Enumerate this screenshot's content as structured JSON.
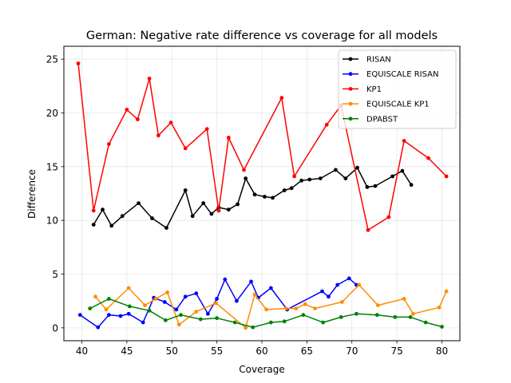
{
  "chart_data": {
    "type": "line",
    "title": "German: Negative rate difference vs coverage for all models",
    "xlabel": "Coverage",
    "ylabel": "Difference",
    "xlim": [
      38,
      82
    ],
    "ylim": [
      -1.2,
      26.2
    ],
    "xticks": [
      40,
      45,
      50,
      55,
      60,
      65,
      70,
      75,
      80
    ],
    "yticks": [
      0,
      5,
      10,
      15,
      20,
      25
    ],
    "grid": true,
    "legend_position": "top-right",
    "series": [
      {
        "name": "RISAN",
        "color": "#000000",
        "points": [
          [
            41.3,
            9.6
          ],
          [
            42.3,
            11.0
          ],
          [
            43.3,
            9.5
          ],
          [
            44.5,
            10.4
          ],
          [
            46.3,
            11.6
          ],
          [
            47.8,
            10.2
          ],
          [
            49.4,
            9.3
          ],
          [
            51.5,
            12.8
          ],
          [
            52.3,
            10.4
          ],
          [
            53.5,
            11.6
          ],
          [
            54.4,
            10.6
          ],
          [
            55.2,
            11.2
          ],
          [
            56.3,
            11.0
          ],
          [
            57.3,
            11.5
          ],
          [
            58.2,
            13.9
          ],
          [
            59.2,
            12.4
          ],
          [
            60.3,
            12.2
          ],
          [
            61.2,
            12.1
          ],
          [
            62.5,
            12.8
          ],
          [
            63.3,
            13.0
          ],
          [
            64.4,
            13.7
          ],
          [
            65.3,
            13.8
          ],
          [
            66.5,
            13.9
          ],
          [
            68.2,
            14.7
          ],
          [
            69.3,
            13.9
          ],
          [
            70.6,
            14.9
          ],
          [
            71.7,
            13.1
          ],
          [
            72.6,
            13.2
          ],
          [
            74.5,
            14.1
          ],
          [
            75.6,
            14.6
          ],
          [
            76.6,
            13.3
          ]
        ]
      },
      {
        "name": "EQUISCALE RISAN",
        "color": "#0000ff",
        "points": [
          [
            39.8,
            1.2
          ],
          [
            41.8,
            0.05
          ],
          [
            43.0,
            1.2
          ],
          [
            44.3,
            1.1
          ],
          [
            45.2,
            1.3
          ],
          [
            46.8,
            0.5
          ],
          [
            48.0,
            2.8
          ],
          [
            49.2,
            2.4
          ],
          [
            50.5,
            1.7
          ],
          [
            51.5,
            2.9
          ],
          [
            52.7,
            3.2
          ],
          [
            54.0,
            1.3
          ],
          [
            55.0,
            2.7
          ],
          [
            55.9,
            4.5
          ],
          [
            57.2,
            2.5
          ],
          [
            58.8,
            4.3
          ],
          [
            59.6,
            2.8
          ],
          [
            61.0,
            3.7
          ],
          [
            62.8,
            1.7
          ],
          [
            66.7,
            3.4
          ],
          [
            67.4,
            2.9
          ],
          [
            68.4,
            4.0
          ],
          [
            69.7,
            4.6
          ],
          [
            70.5,
            4.0
          ]
        ]
      },
      {
        "name": "KP1",
        "color": "#ff0000",
        "points": [
          [
            39.6,
            24.6
          ],
          [
            41.3,
            10.9
          ],
          [
            43.0,
            17.1
          ],
          [
            45.0,
            20.3
          ],
          [
            46.2,
            19.4
          ],
          [
            47.5,
            23.2
          ],
          [
            48.5,
            17.9
          ],
          [
            49.9,
            19.1
          ],
          [
            51.5,
            16.7
          ],
          [
            53.9,
            18.5
          ],
          [
            55.2,
            10.9
          ],
          [
            56.3,
            17.7
          ],
          [
            58.0,
            14.7
          ],
          [
            62.2,
            21.4
          ],
          [
            63.6,
            14.1
          ],
          [
            67.2,
            18.9
          ],
          [
            68.8,
            20.7
          ],
          [
            71.8,
            9.1
          ],
          [
            74.1,
            10.3
          ],
          [
            75.8,
            17.4
          ],
          [
            78.5,
            15.8
          ],
          [
            80.5,
            14.1
          ]
        ]
      },
      {
        "name": "EQUISCALE KP1",
        "color": "#ff8c00",
        "points": [
          [
            41.5,
            2.9
          ],
          [
            42.7,
            1.7
          ],
          [
            45.2,
            3.7
          ],
          [
            47.0,
            2.1
          ],
          [
            48.2,
            2.7
          ],
          [
            49.5,
            3.3
          ],
          [
            50.8,
            0.3
          ],
          [
            52.7,
            1.5
          ],
          [
            54.9,
            2.3
          ],
          [
            58.2,
            0.0
          ],
          [
            59.2,
            3.1
          ],
          [
            60.5,
            1.7
          ],
          [
            62.7,
            1.8
          ],
          [
            63.8,
            1.8
          ],
          [
            64.8,
            2.2
          ],
          [
            65.9,
            1.8
          ],
          [
            68.9,
            2.4
          ],
          [
            70.8,
            4.0
          ],
          [
            72.9,
            2.1
          ],
          [
            75.8,
            2.7
          ],
          [
            76.8,
            1.3
          ],
          [
            79.7,
            1.9
          ],
          [
            80.5,
            3.4
          ]
        ]
      },
      {
        "name": "DPABST",
        "color": "#008000",
        "points": [
          [
            40.9,
            1.8
          ],
          [
            43.0,
            2.7
          ],
          [
            45.3,
            2.0
          ],
          [
            47.5,
            1.6
          ],
          [
            49.3,
            0.7
          ],
          [
            51.0,
            1.2
          ],
          [
            53.2,
            0.8
          ],
          [
            55.0,
            0.9
          ],
          [
            57.0,
            0.5
          ],
          [
            59.0,
            0.05
          ],
          [
            61.0,
            0.5
          ],
          [
            62.5,
            0.6
          ],
          [
            64.6,
            1.2
          ],
          [
            66.8,
            0.5
          ],
          [
            68.8,
            1.0
          ],
          [
            70.5,
            1.3
          ],
          [
            72.8,
            1.2
          ],
          [
            74.8,
            1.0
          ],
          [
            76.5,
            1.0
          ],
          [
            78.2,
            0.5
          ],
          [
            80.0,
            0.1
          ]
        ]
      }
    ]
  }
}
